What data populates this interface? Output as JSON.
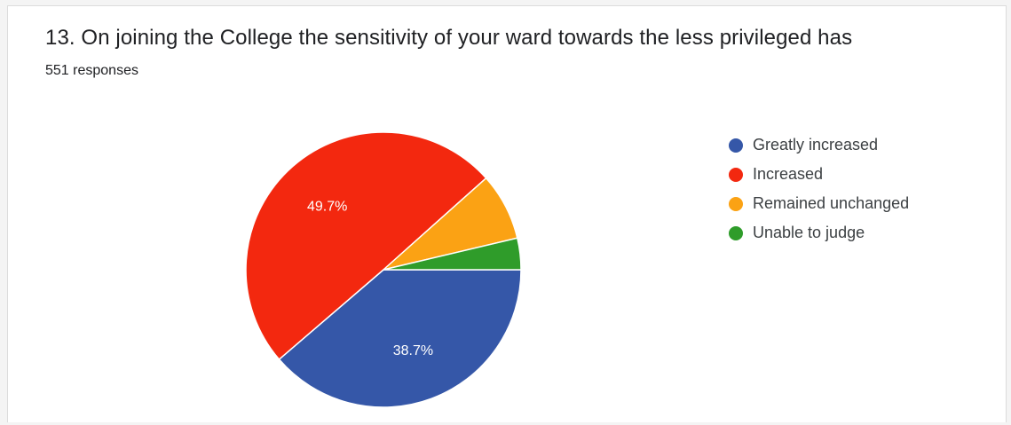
{
  "question": {
    "title": "13.  On joining the College the sensitivity of your ward towards the less privileged has",
    "responses": "551 responses"
  },
  "chart_data": {
    "type": "pie",
    "categories": [
      "Greatly increased",
      "Increased",
      "Remained unchanged",
      "Unable to judge"
    ],
    "values": [
      38.7,
      49.7,
      7.9,
      3.7
    ],
    "unit": "%",
    "colors": [
      "#3557a8",
      "#f3280f",
      "#fba214",
      "#2f9c2a"
    ],
    "data_labels": [
      "38.7%",
      "49.7%",
      "",
      ""
    ],
    "legend_position": "right"
  }
}
